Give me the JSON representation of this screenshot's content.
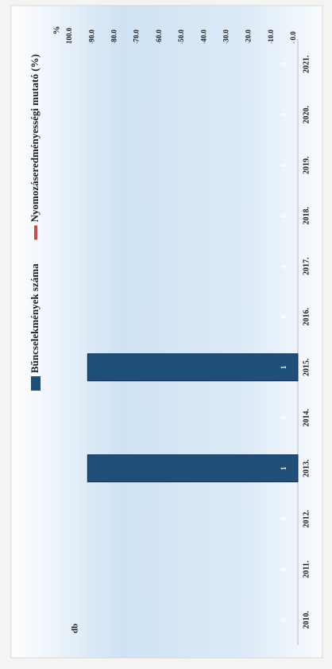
{
  "chart_data": {
    "type": "bar",
    "categories": [
      "2010.",
      "2011.",
      "2012.",
      "2013.",
      "2014.",
      "2015.",
      "2016.",
      "2017.",
      "2018.",
      "2019.",
      "2020.",
      "2021."
    ],
    "series": [
      {
        "name": "Bűncselekmények száma",
        "color": "#1f4e79",
        "values": [
          0,
          0,
          0,
          1,
          0,
          1,
          0,
          0,
          0,
          0,
          0,
          0
        ]
      },
      {
        "name": "Nyomozáseredményességi mutató (%)",
        "color": "#c0504d",
        "axis": "y2",
        "values": [
          null,
          null,
          null,
          null,
          null,
          null,
          null,
          null,
          null,
          null,
          null,
          null
        ]
      }
    ],
    "ylabel": "db",
    "y2label": "%",
    "ylim": [
      0,
      1.02
    ],
    "y2lim": [
      0,
      100
    ],
    "y2ticks": [
      {
        "value": 0,
        "label": "0.0"
      },
      {
        "value": 10,
        "label": "10.0"
      },
      {
        "value": 20,
        "label": "20.0"
      },
      {
        "value": 30,
        "label": "30.0"
      },
      {
        "value": 40,
        "label": "40.0"
      },
      {
        "value": 50,
        "label": "50.0"
      },
      {
        "value": 60,
        "label": "60.0"
      },
      {
        "value": 70,
        "label": "70.0"
      },
      {
        "value": 80,
        "label": "80.0"
      },
      {
        "value": 90,
        "label": "90.0"
      },
      {
        "value": 100,
        "label": "100.0"
      }
    ]
  }
}
